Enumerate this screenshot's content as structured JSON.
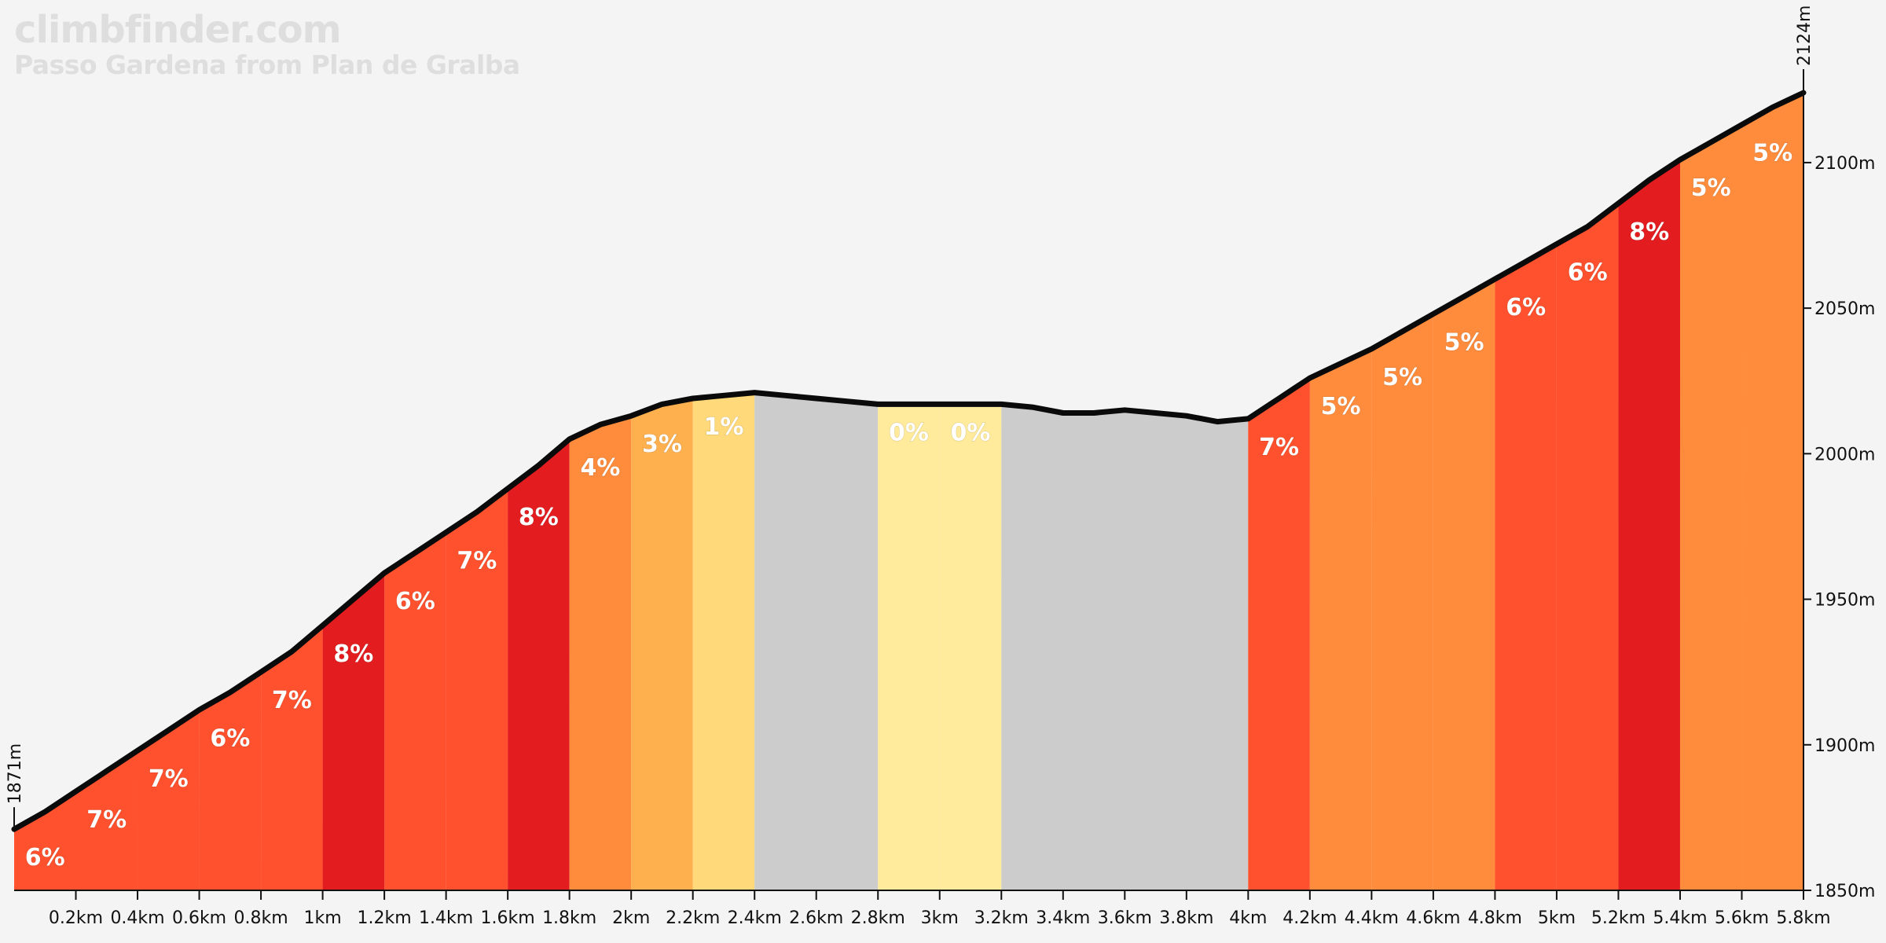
{
  "header": {
    "brand": "climbfinder.com",
    "subtitle": "Passo Gardena from Plan de Gralba"
  },
  "chart_data": {
    "type": "area",
    "title": "Passo Gardena from Plan de Gralba",
    "xlabel": "",
    "ylabel": "",
    "xlim": [
      0,
      5.8
    ],
    "ylim": [
      1850,
      2124
    ],
    "start_label": "1871m",
    "end_label": "2124m",
    "x_ticks": [
      {
        "v": 0.2,
        "label": "0.2km"
      },
      {
        "v": 0.4,
        "label": "0.4km"
      },
      {
        "v": 0.6,
        "label": "0.6km"
      },
      {
        "v": 0.8,
        "label": "0.8km"
      },
      {
        "v": 1.0,
        "label": "1km"
      },
      {
        "v": 1.2,
        "label": "1.2km"
      },
      {
        "v": 1.4,
        "label": "1.4km"
      },
      {
        "v": 1.6,
        "label": "1.6km"
      },
      {
        "v": 1.8,
        "label": "1.8km"
      },
      {
        "v": 2.0,
        "label": "2km"
      },
      {
        "v": 2.2,
        "label": "2.2km"
      },
      {
        "v": 2.4,
        "label": "2.4km"
      },
      {
        "v": 2.6,
        "label": "2.6km"
      },
      {
        "v": 2.8,
        "label": "2.8km"
      },
      {
        "v": 3.0,
        "label": "3km"
      },
      {
        "v": 3.2,
        "label": "3.2km"
      },
      {
        "v": 3.4,
        "label": "3.4km"
      },
      {
        "v": 3.6,
        "label": "3.6km"
      },
      {
        "v": 3.8,
        "label": "3.8km"
      },
      {
        "v": 4.0,
        "label": "4km"
      },
      {
        "v": 4.2,
        "label": "4.2km"
      },
      {
        "v": 4.4,
        "label": "4.4km"
      },
      {
        "v": 4.6,
        "label": "4.6km"
      },
      {
        "v": 4.8,
        "label": "4.8km"
      },
      {
        "v": 5.0,
        "label": "5km"
      },
      {
        "v": 5.2,
        "label": "5.2km"
      },
      {
        "v": 5.4,
        "label": "5.4km"
      },
      {
        "v": 5.6,
        "label": "5.6km"
      },
      {
        "v": 5.8,
        "label": "5.8km"
      }
    ],
    "y_ticks": [
      {
        "v": 1850,
        "label": "1850m"
      },
      {
        "v": 1900,
        "label": "1900m"
      },
      {
        "v": 1950,
        "label": "1950m"
      },
      {
        "v": 2000,
        "label": "2000m"
      },
      {
        "v": 2050,
        "label": "2050m"
      },
      {
        "v": 2100,
        "label": "2100m"
      }
    ],
    "profile": [
      [
        0.0,
        1871
      ],
      [
        0.1,
        1877
      ],
      [
        0.2,
        1884
      ],
      [
        0.3,
        1891
      ],
      [
        0.4,
        1898
      ],
      [
        0.5,
        1905
      ],
      [
        0.6,
        1912
      ],
      [
        0.7,
        1918
      ],
      [
        0.8,
        1925
      ],
      [
        0.9,
        1932
      ],
      [
        1.0,
        1941
      ],
      [
        1.1,
        1950
      ],
      [
        1.2,
        1959
      ],
      [
        1.3,
        1966
      ],
      [
        1.4,
        1973
      ],
      [
        1.5,
        1980
      ],
      [
        1.6,
        1988
      ],
      [
        1.7,
        1996
      ],
      [
        1.8,
        2005
      ],
      [
        1.9,
        2010
      ],
      [
        2.0,
        2013
      ],
      [
        2.1,
        2017
      ],
      [
        2.2,
        2019
      ],
      [
        2.3,
        2020
      ],
      [
        2.4,
        2021
      ],
      [
        2.5,
        2020
      ],
      [
        2.6,
        2019
      ],
      [
        2.7,
        2018
      ],
      [
        2.8,
        2017
      ],
      [
        2.9,
        2017
      ],
      [
        3.0,
        2017
      ],
      [
        3.1,
        2017
      ],
      [
        3.2,
        2017
      ],
      [
        3.3,
        2016
      ],
      [
        3.4,
        2014
      ],
      [
        3.5,
        2014
      ],
      [
        3.6,
        2015
      ],
      [
        3.7,
        2014
      ],
      [
        3.8,
        2013
      ],
      [
        3.9,
        2011
      ],
      [
        4.0,
        2012
      ],
      [
        4.1,
        2019
      ],
      [
        4.2,
        2026
      ],
      [
        4.3,
        2031
      ],
      [
        4.4,
        2036
      ],
      [
        4.5,
        2042
      ],
      [
        4.6,
        2048
      ],
      [
        4.7,
        2054
      ],
      [
        4.8,
        2060
      ],
      [
        4.9,
        2066
      ],
      [
        5.0,
        2072
      ],
      [
        5.1,
        2078
      ],
      [
        5.2,
        2086
      ],
      [
        5.3,
        2094
      ],
      [
        5.4,
        2101
      ],
      [
        5.5,
        2107
      ],
      [
        5.6,
        2113
      ],
      [
        5.7,
        2119
      ],
      [
        5.8,
        2124
      ]
    ],
    "segments": [
      {
        "from": 0.0,
        "to": 0.2,
        "grade": "6%",
        "color": "#ff512d"
      },
      {
        "from": 0.2,
        "to": 0.4,
        "grade": "7%",
        "color": "#ff512d"
      },
      {
        "from": 0.4,
        "to": 0.6,
        "grade": "7%",
        "color": "#ff512d"
      },
      {
        "from": 0.6,
        "to": 0.8,
        "grade": "6%",
        "color": "#ff512d"
      },
      {
        "from": 0.8,
        "to": 1.0,
        "grade": "7%",
        "color": "#ff512d"
      },
      {
        "from": 1.0,
        "to": 1.2,
        "grade": "8%",
        "color": "#e31c1f"
      },
      {
        "from": 1.2,
        "to": 1.4,
        "grade": "6%",
        "color": "#ff512d"
      },
      {
        "from": 1.4,
        "to": 1.6,
        "grade": "7%",
        "color": "#ff512d"
      },
      {
        "from": 1.6,
        "to": 1.8,
        "grade": "8%",
        "color": "#e31c1f"
      },
      {
        "from": 1.8,
        "to": 2.0,
        "grade": "4%",
        "color": "#ff8c3c"
      },
      {
        "from": 2.0,
        "to": 2.2,
        "grade": "3%",
        "color": "#ffb04e"
      },
      {
        "from": 2.2,
        "to": 2.4,
        "grade": "1%",
        "color": "#ffd97a"
      },
      {
        "from": 2.4,
        "to": 2.8,
        "grade": "",
        "color": "#cccccc"
      },
      {
        "from": 2.8,
        "to": 3.0,
        "grade": "0%",
        "color": "#ffeb9b"
      },
      {
        "from": 3.0,
        "to": 3.2,
        "grade": "0%",
        "color": "#ffeb9b"
      },
      {
        "from": 3.2,
        "to": 4.0,
        "grade": "",
        "color": "#cccccc"
      },
      {
        "from": 4.0,
        "to": 4.2,
        "grade": "7%",
        "color": "#ff512d"
      },
      {
        "from": 4.2,
        "to": 4.4,
        "grade": "5%",
        "color": "#ff8c3c"
      },
      {
        "from": 4.4,
        "to": 4.6,
        "grade": "5%",
        "color": "#ff8c3c"
      },
      {
        "from": 4.6,
        "to": 4.8,
        "grade": "5%",
        "color": "#ff8c3c"
      },
      {
        "from": 4.8,
        "to": 5.0,
        "grade": "6%",
        "color": "#ff512d"
      },
      {
        "from": 5.0,
        "to": 5.2,
        "grade": "6%",
        "color": "#ff512d"
      },
      {
        "from": 5.2,
        "to": 5.4,
        "grade": "8%",
        "color": "#e31c1f"
      },
      {
        "from": 5.4,
        "to": 5.6,
        "grade": "5%",
        "color": "#ff8c3c"
      },
      {
        "from": 5.6,
        "to": 5.8,
        "grade": "5%",
        "color": "#ff8c3c"
      }
    ],
    "grid": false,
    "legend": "none"
  }
}
